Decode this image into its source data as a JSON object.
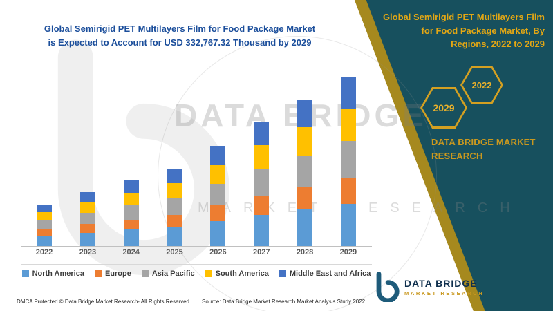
{
  "header": {
    "title_line1": "Global Semirigid PET Multilayers Film for Food Package Market",
    "title_line2": "is Expected to Account for USD 332,767.32 Thousand by 2029"
  },
  "right_panel": {
    "title": "Global Semirigid PET Multilayers Film for Food Package Market, By Regions, 2022 to 2029",
    "hexagon_left": "2029",
    "hexagon_right": "2022",
    "brand": "DATA BRIDGE MARKET RESEARCH"
  },
  "chart_data": {
    "type": "bar",
    "stacked": true,
    "title": "Global Semirigid PET Multilayers Film for Food Package Market, By Regions, 2022 to 2029",
    "unit": "USD Thousand",
    "categories": [
      "2022",
      "2023",
      "2024",
      "2025",
      "2026",
      "2027",
      "2028",
      "2029"
    ],
    "series": [
      {
        "name": "North America",
        "color": "#5B9BD5",
        "values": [
          20400,
          26500,
          32300,
          38000,
          49200,
          61100,
          72000,
          83200
        ]
      },
      {
        "name": "Europe",
        "color": "#ED7D31",
        "values": [
          12600,
          16400,
          20000,
          23600,
          30500,
          37900,
          44600,
          51600
        ]
      },
      {
        "name": "Asia Pacific",
        "color": "#A5A5A5",
        "values": [
          17500,
          22800,
          27700,
          32700,
          42300,
          52600,
          61900,
          71500
        ]
      },
      {
        "name": "South America",
        "color": "#FFC000",
        "values": [
          15500,
          20100,
          24500,
          28900,
          37400,
          46500,
          54700,
          63200
        ]
      },
      {
        "name": "Middle East and Africa",
        "color": "#4472C4",
        "values": [
          15500,
          20100,
          24500,
          28900,
          37400,
          46400,
          54700,
          63267.32
        ]
      }
    ],
    "totals": [
      81500,
      105900,
      129000,
      152100,
      196800,
      244500,
      287900,
      332767.32
    ],
    "highlight_value_2029": "USD 332,767.32 Thousand",
    "ylim": [
      0,
      350000
    ],
    "grid": false,
    "y_axis_visible": false,
    "legend_position": "bottom"
  },
  "watermark": {
    "brand": "DATA BRIDGE",
    "secondary": "MARKET RESEARCH"
  },
  "logo": {
    "name": "DATA BRIDGE",
    "tagline": "MARKET RESEARCH"
  },
  "footer": {
    "copyright": "DMCA Protected © Data Bridge Market Research- All Rights Reserved.",
    "source": "Source: Data Bridge Market Research Market Analysis Study 2022"
  },
  "colors": {
    "teal_panel": "#17505E",
    "gold_accent": "#D4A021",
    "headline_blue": "#1B4E9B"
  }
}
